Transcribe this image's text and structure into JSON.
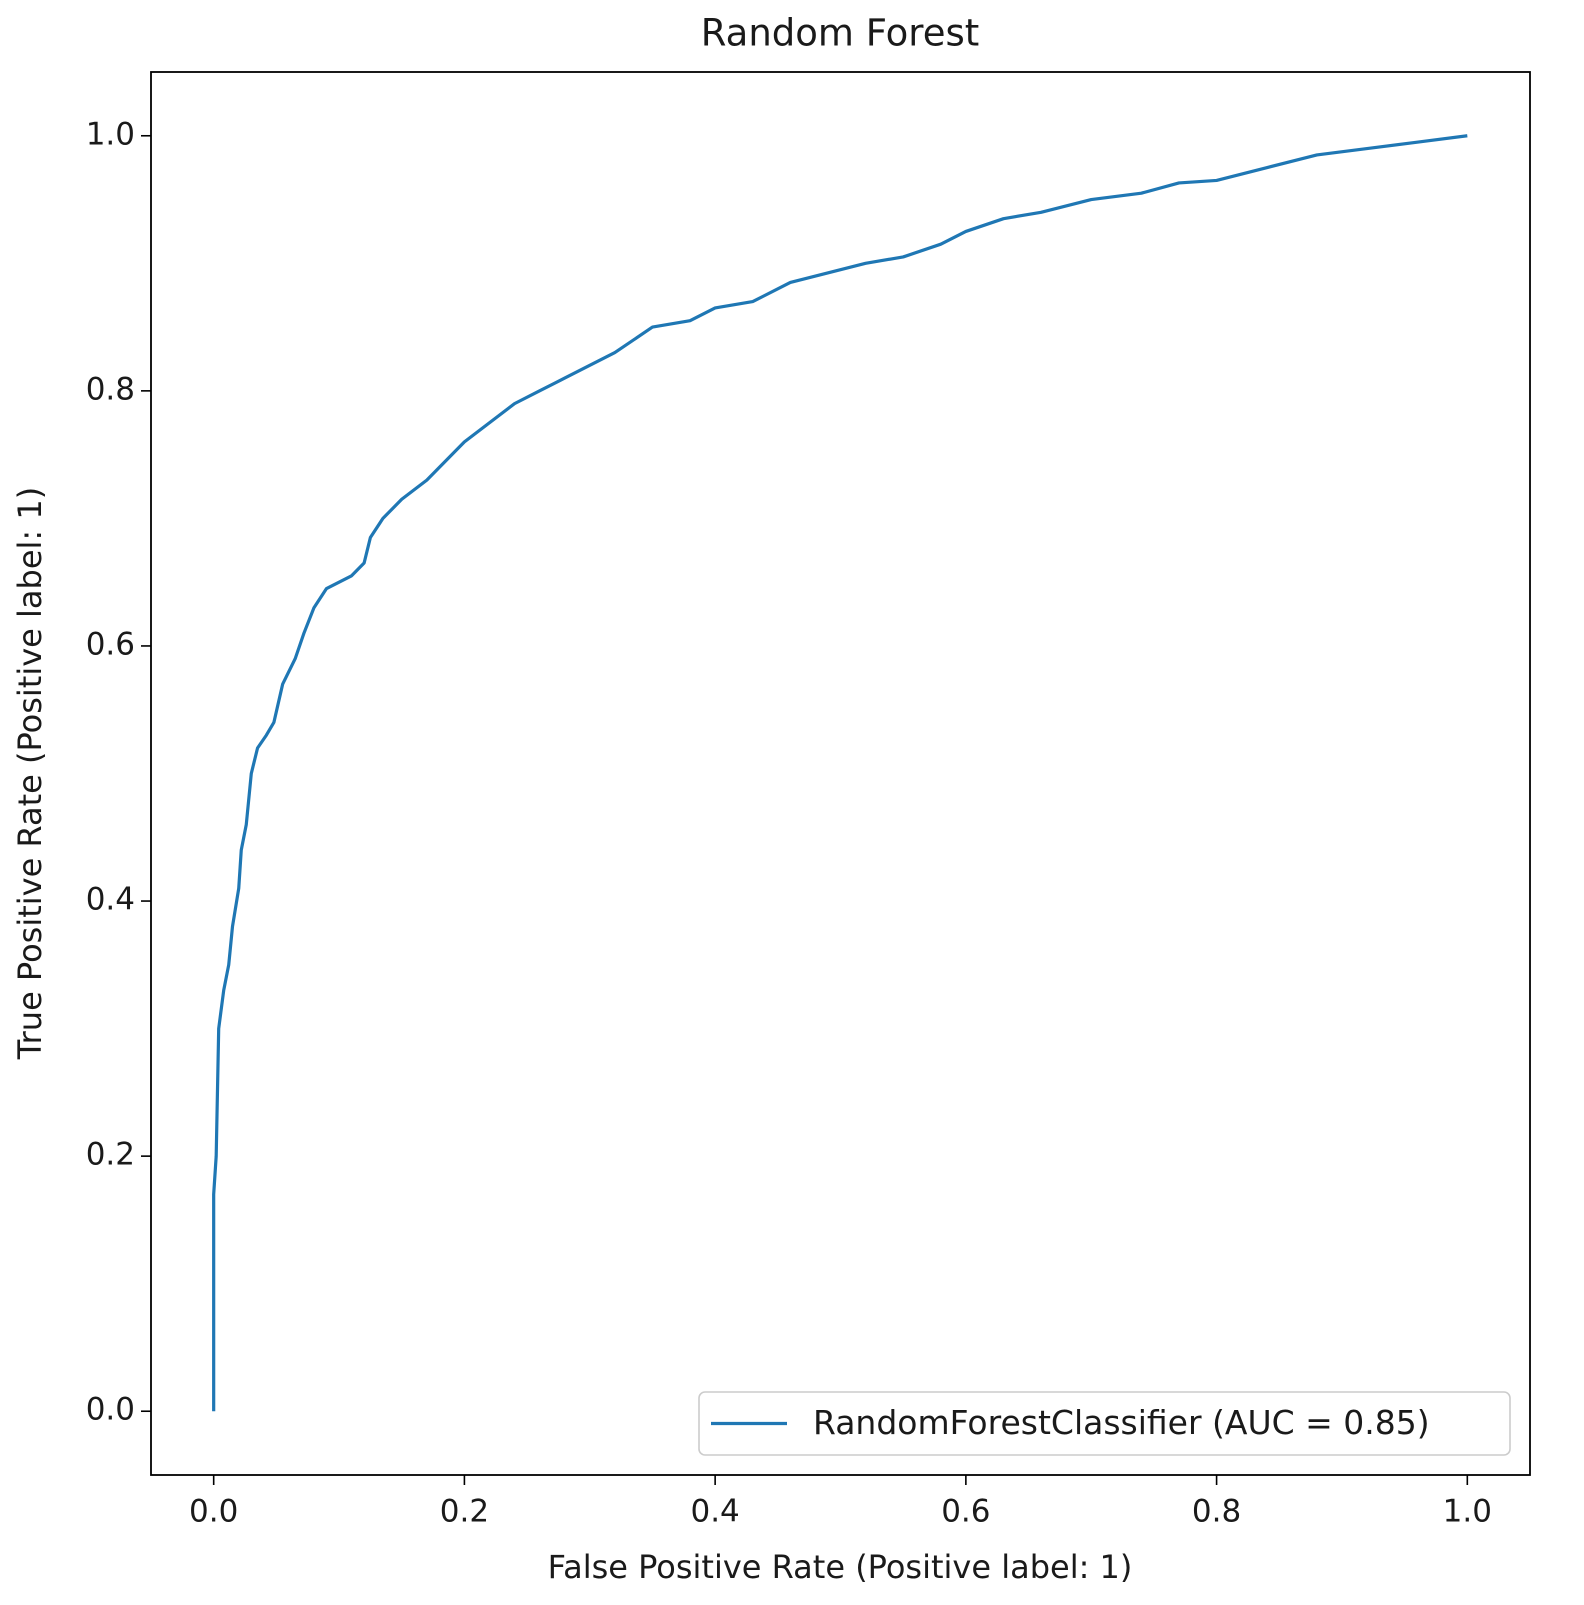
{
  "chart_data": {
    "type": "line",
    "title": "Random Forest",
    "x_label": "False Positive Rate (Positive label: 1)",
    "y_label": "True Positive Rate (Positive label: 1)",
    "xlim": [
      -0.05,
      1.05
    ],
    "ylim": [
      -0.05,
      1.05
    ],
    "xticks": [
      {
        "value": 0,
        "label": "0.0"
      },
      0.2,
      0.4,
      0.6,
      0.8,
      {
        "value": 1,
        "label": "1.0"
      }
    ],
    "yticks": [
      {
        "value": 0,
        "label": "0.0"
      },
      0.2,
      0.4,
      0.6,
      0.8,
      {
        "value": 1,
        "label": "1.0"
      }
    ],
    "grid": false,
    "legend_position": "lower right",
    "x": [
      0,
      0,
      0.002,
      0.004,
      0.008,
      0.012,
      0.015,
      0.02,
      0.022,
      0.026,
      0.03,
      0.035,
      0.042,
      0.048,
      0.055,
      0.065,
      0.072,
      0.08,
      0.09,
      0.1,
      0.11,
      0.12,
      0.125,
      0.135,
      0.15,
      0.17,
      0.19,
      0.2,
      0.22,
      0.24,
      0.26,
      0.28,
      0.3,
      0.32,
      0.35,
      0.38,
      0.4,
      0.43,
      0.46,
      0.5,
      0.52,
      0.55,
      0.58,
      0.6,
      0.63,
      0.66,
      0.7,
      0.74,
      0.77,
      0.8,
      0.84,
      0.88,
      0.92,
      0.96,
      1
    ],
    "series": [
      {
        "name": "RandomForestClassifier (AUC = 0.85)",
        "color": "#1f77b4",
        "values": [
          0,
          0.17,
          0.2,
          0.3,
          0.33,
          0.35,
          0.38,
          0.41,
          0.44,
          0.46,
          0.5,
          0.52,
          0.53,
          0.54,
          0.57,
          0.59,
          0.61,
          0.63,
          0.645,
          0.65,
          0.655,
          0.665,
          0.685,
          0.7,
          0.715,
          0.73,
          0.75,
          0.76,
          0.775,
          0.79,
          0.8,
          0.81,
          0.82,
          0.83,
          0.85,
          0.855,
          0.865,
          0.87,
          0.885,
          0.895,
          0.9,
          0.905,
          0.915,
          0.925,
          0.935,
          0.94,
          0.95,
          0.955,
          0.963,
          0.965,
          0.975,
          0.985,
          0.99,
          0.995,
          1
        ]
      }
    ]
  }
}
